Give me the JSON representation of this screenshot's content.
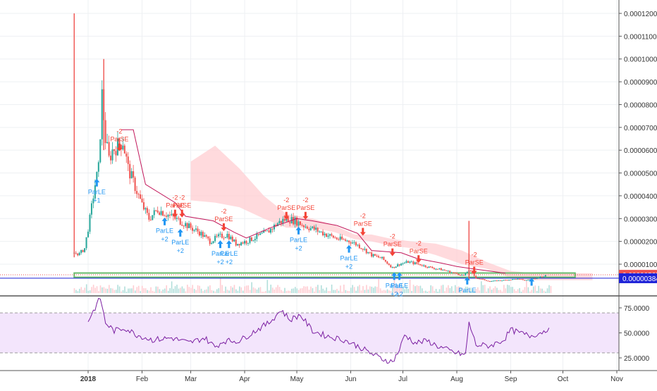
{
  "chart_data": {
    "type": "candlestick",
    "main_panel": {
      "y_axis_ticks": [
        "0.00012000",
        "0.00011000",
        "0.00010000",
        "0.00009000",
        "0.00008000",
        "0.00007000",
        "0.00006000",
        "0.00005000",
        "0.00004000",
        "0.00003000",
        "0.00002000",
        "0.00001000"
      ],
      "ylim": [
        0,
        0.000122
      ],
      "price_labels": [
        {
          "text": "0.00000535",
          "value": 5.35e-06,
          "color": "#ef5350"
        },
        {
          "text": "0.00000384",
          "value": 3.84e-06,
          "color": "#1e22d8"
        }
      ],
      "close_series": [
        {
          "d": "2017-12-24",
          "v": 1.5e-05
        },
        {
          "d": "2017-12-27",
          "v": 1.45e-05
        },
        {
          "d": "2017-12-30",
          "v": 1.7e-05
        },
        {
          "d": "2018-01-02",
          "v": 3e-05
        },
        {
          "d": "2018-01-05",
          "v": 4.5e-05
        },
        {
          "d": "2018-01-07",
          "v": 5.2e-05
        },
        {
          "d": "2018-01-09",
          "v": 8.4e-05
        },
        {
          "d": "2018-01-11",
          "v": 6.5e-05
        },
        {
          "d": "2018-01-13",
          "v": 5.6e-05
        },
        {
          "d": "2018-01-15",
          "v": 6e-05
        },
        {
          "d": "2018-01-18",
          "v": 6.2e-05
        },
        {
          "d": "2018-01-21",
          "v": 6.4e-05
        },
        {
          "d": "2018-01-24",
          "v": 5.2e-05
        },
        {
          "d": "2018-01-28",
          "v": 4.4e-05
        },
        {
          "d": "2018-02-01",
          "v": 3.6e-05
        },
        {
          "d": "2018-02-05",
          "v": 3e-05
        },
        {
          "d": "2018-02-10",
          "v": 3.4e-05
        },
        {
          "d": "2018-02-15",
          "v": 3.2e-05
        },
        {
          "d": "2018-02-20",
          "v": 3e-05
        },
        {
          "d": "2018-02-25",
          "v": 2.8e-05
        },
        {
          "d": "2018-03-01",
          "v": 2.6e-05
        },
        {
          "d": "2018-03-06",
          "v": 2.4e-05
        },
        {
          "d": "2018-03-12",
          "v": 2e-05
        },
        {
          "d": "2018-03-17",
          "v": 2.2e-05
        },
        {
          "d": "2018-03-22",
          "v": 2.3e-05
        },
        {
          "d": "2018-03-27",
          "v": 1.9e-05
        },
        {
          "d": "2018-04-02",
          "v": 2e-05
        },
        {
          "d": "2018-04-08",
          "v": 2.2e-05
        },
        {
          "d": "2018-04-14",
          "v": 2.4e-05
        },
        {
          "d": "2018-04-20",
          "v": 2.8e-05
        },
        {
          "d": "2018-04-25",
          "v": 3e-05
        },
        {
          "d": "2018-04-30",
          "v": 2.9e-05
        },
        {
          "d": "2018-05-05",
          "v": 2.7e-05
        },
        {
          "d": "2018-05-12",
          "v": 2.5e-05
        },
        {
          "d": "2018-05-18",
          "v": 2.3e-05
        },
        {
          "d": "2018-05-25",
          "v": 2.1e-05
        },
        {
          "d": "2018-06-01",
          "v": 2e-05
        },
        {
          "d": "2018-06-07",
          "v": 1.75e-05
        },
        {
          "d": "2018-06-13",
          "v": 1.4e-05
        },
        {
          "d": "2018-06-19",
          "v": 1.25e-05
        },
        {
          "d": "2018-06-25",
          "v": 8.5e-06
        },
        {
          "d": "2018-06-29",
          "v": 1e-05
        },
        {
          "d": "2018-07-04",
          "v": 1.1e-05
        },
        {
          "d": "2018-07-10",
          "v": 1e-05
        },
        {
          "d": "2018-07-17",
          "v": 8.5e-06
        },
        {
          "d": "2018-07-24",
          "v": 7.5e-06
        },
        {
          "d": "2018-07-31",
          "v": 6e-06
        },
        {
          "d": "2018-08-05",
          "v": 5e-06
        },
        {
          "d": "2018-08-08",
          "v": 7.5e-06
        },
        {
          "d": "2018-08-12",
          "v": 4e-06
        },
        {
          "d": "2018-08-20",
          "v": 2.5e-06
        },
        {
          "d": "2018-08-28",
          "v": 3e-06
        },
        {
          "d": "2018-09-04",
          "v": 3.5e-06
        },
        {
          "d": "2018-09-10",
          "v": 3e-06
        },
        {
          "d": "2018-09-16",
          "v": 4e-06
        },
        {
          "d": "2018-09-22",
          "v": 5.3e-06
        }
      ],
      "spikes": [
        {
          "d": "2017-12-24",
          "high": 0.00012,
          "low": 1.3e-05
        },
        {
          "d": "2018-01-10",
          "high": 0.0001,
          "low": 6e-05
        },
        {
          "d": "2018-08-08",
          "high": 2.9e-05,
          "low": 3e-06
        }
      ],
      "trailing_line": [
        {
          "d": "2018-01-20",
          "v": 6.9e-05
        },
        {
          "d": "2018-01-27",
          "v": 6.9e-05
        },
        {
          "d": "2018-02-03",
          "v": 4.5e-05
        },
        {
          "d": "2018-02-20",
          "v": 3.7e-05
        },
        {
          "d": "2018-02-26",
          "v": 3.1e-05
        },
        {
          "d": "2018-03-14",
          "v": 2.9e-05
        },
        {
          "d": "2018-03-26",
          "v": 2.4e-05
        },
        {
          "d": "2018-04-02",
          "v": 2.15e-05
        },
        {
          "d": "2018-04-16",
          "v": 2.6e-05
        },
        {
          "d": "2018-05-01",
          "v": 3e-05
        },
        {
          "d": "2018-05-10",
          "v": 2.9e-05
        },
        {
          "d": "2018-05-24",
          "v": 2.7e-05
        },
        {
          "d": "2018-06-05",
          "v": 2.35e-05
        },
        {
          "d": "2018-06-13",
          "v": 1.6e-05
        },
        {
          "d": "2018-06-30",
          "v": 1.5e-05
        },
        {
          "d": "2018-07-09",
          "v": 1.25e-05
        },
        {
          "d": "2018-07-23",
          "v": 1.05e-05
        },
        {
          "d": "2018-08-01",
          "v": 9e-06
        },
        {
          "d": "2018-08-10",
          "v": 8e-06
        },
        {
          "d": "2018-08-20",
          "v": 7e-06
        },
        {
          "d": "2018-08-29",
          "v": 6e-06
        }
      ],
      "cloud_upper": [
        {
          "d": "2018-03-01",
          "v": 5.5e-05
        },
        {
          "d": "2018-03-15",
          "v": 6.2e-05
        },
        {
          "d": "2018-03-29",
          "v": 5.2e-05
        },
        {
          "d": "2018-04-12",
          "v": 4e-05
        },
        {
          "d": "2018-04-25",
          "v": 3.2e-05
        },
        {
          "d": "2018-05-10",
          "v": 3e-05
        },
        {
          "d": "2018-05-23",
          "v": 2.7e-05
        },
        {
          "d": "2018-06-03",
          "v": 2.3e-05
        },
        {
          "d": "2018-06-13",
          "v": 2.3e-05
        },
        {
          "d": "2018-06-25",
          "v": 2.1e-05
        },
        {
          "d": "2018-07-06",
          "v": 2e-05
        },
        {
          "d": "2018-07-20",
          "v": 1.9e-05
        },
        {
          "d": "2018-08-04",
          "v": 1.6e-05
        },
        {
          "d": "2018-08-18",
          "v": 1.1e-05
        },
        {
          "d": "2018-09-01",
          "v": 7e-06
        },
        {
          "d": "2018-09-15",
          "v": 6e-06
        },
        {
          "d": "2018-10-01",
          "v": 6e-06
        },
        {
          "d": "2018-10-18",
          "v": 6e-06
        }
      ],
      "cloud_lower": [
        {
          "d": "2018-03-01",
          "v": 3.8e-05
        },
        {
          "d": "2018-03-15",
          "v": 3.7e-05
        },
        {
          "d": "2018-03-29",
          "v": 3.5e-05
        },
        {
          "d": "2018-04-12",
          "v": 3e-05
        },
        {
          "d": "2018-04-25",
          "v": 2.6e-05
        },
        {
          "d": "2018-05-10",
          "v": 2.6e-05
        },
        {
          "d": "2018-05-23",
          "v": 2.4e-05
        },
        {
          "d": "2018-06-03",
          "v": 2.1e-05
        },
        {
          "d": "2018-06-13",
          "v": 2e-05
        },
        {
          "d": "2018-06-25",
          "v": 1.8e-05
        },
        {
          "d": "2018-07-06",
          "v": 1.7e-05
        },
        {
          "d": "2018-07-20",
          "v": 1.4e-05
        },
        {
          "d": "2018-08-04",
          "v": 1e-05
        },
        {
          "d": "2018-08-18",
          "v": 8e-06
        },
        {
          "d": "2018-09-01",
          "v": 4e-06
        },
        {
          "d": "2018-09-15",
          "v": 3e-06
        },
        {
          "d": "2018-10-01",
          "v": 3e-06
        },
        {
          "d": "2018-10-18",
          "v": 3e-06
        }
      ],
      "signals": [
        {
          "d": "2018-01-06",
          "kind": "buy",
          "v": 4.5e-05,
          "label": "ParLE",
          "qty": "+1"
        },
        {
          "d": "2018-01-19",
          "kind": "sell",
          "v": 6.2e-05,
          "label": "ParSE",
          "qty": "-2"
        },
        {
          "d": "2018-02-14",
          "kind": "buy",
          "v": 2.8e-05,
          "label": "ParLE",
          "qty": "+2"
        },
        {
          "d": "2018-02-20",
          "kind": "sell",
          "v": 3.3e-05,
          "label": "ParSE",
          "qty": "-2"
        },
        {
          "d": "2018-02-24",
          "kind": "sell",
          "v": 3.3e-05,
          "label": "ParSE",
          "qty": "-2"
        },
        {
          "d": "2018-02-23",
          "kind": "buy",
          "v": 2.3e-05,
          "label": "ParLE",
          "qty": "+2"
        },
        {
          "d": "2018-03-18",
          "kind": "buy",
          "v": 1.8e-05,
          "label": "ParLE",
          "qty": "+2"
        },
        {
          "d": "2018-03-23",
          "kind": "buy",
          "v": 1.8e-05,
          "label": "ParLE",
          "qty": "+2"
        },
        {
          "d": "2018-03-20",
          "kind": "sell",
          "v": 2.7e-05,
          "label": "ParSE",
          "qty": "-2"
        },
        {
          "d": "2018-04-25",
          "kind": "sell",
          "v": 3.2e-05,
          "label": "ParSE",
          "qty": "-2"
        },
        {
          "d": "2018-05-02",
          "kind": "buy",
          "v": 2.4e-05,
          "label": "ParLE",
          "qty": "+2"
        },
        {
          "d": "2018-05-06",
          "kind": "sell",
          "v": 3.2e-05,
          "label": "ParSE",
          "qty": "-2"
        },
        {
          "d": "2018-05-31",
          "kind": "buy",
          "v": 1.6e-05,
          "label": "ParLE",
          "qty": "+2"
        },
        {
          "d": "2018-06-08",
          "kind": "sell",
          "v": 2.5e-05,
          "label": "ParSE",
          "qty": "-2"
        },
        {
          "d": "2018-06-25",
          "kind": "sell",
          "v": 1.6e-05,
          "label": "ParSE",
          "qty": "-2"
        },
        {
          "d": "2018-06-26",
          "kind": "buy",
          "v": 4e-06,
          "label": "ParLE",
          "qty": "+2"
        },
        {
          "d": "2018-06-29",
          "kind": "buy",
          "v": 4e-06,
          "label": "ParLE",
          "qty": "+2"
        },
        {
          "d": "2018-07-10",
          "kind": "sell",
          "v": 1.3e-05,
          "label": "ParSE",
          "qty": "-2"
        },
        {
          "d": "2018-08-07",
          "kind": "buy",
          "v": 2e-06,
          "label": "ParLE",
          "qty": ""
        },
        {
          "d": "2018-08-11",
          "kind": "sell",
          "v": 8e-06,
          "label": "ParSE",
          "qty": "-2"
        },
        {
          "d": "2018-09-13",
          "kind": "buy",
          "v": 1.5e-06,
          "label": "",
          "qty": ""
        }
      ],
      "horizontal_lines": [
        {
          "v": 5.35e-06,
          "color": "#ef5350",
          "style": "dotted"
        },
        {
          "v": 3.84e-06,
          "color": "#1e22d8",
          "style": "solid"
        },
        {
          "v": 5.2e-06,
          "color": "#66bb6a",
          "style": "band"
        }
      ]
    },
    "rsi_panel": {
      "y_axis_ticks": [
        "75.0000",
        "50.0000",
        "25.0000"
      ],
      "ylim": [
        18,
        90
      ],
      "band": [
        30,
        70
      ],
      "values": [
        {
          "d": "2018-01-01",
          "v": 62
        },
        {
          "d": "2018-01-05",
          "v": 75
        },
        {
          "d": "2018-01-08",
          "v": 85
        },
        {
          "d": "2018-01-11",
          "v": 60
        },
        {
          "d": "2018-01-16",
          "v": 52
        },
        {
          "d": "2018-01-22",
          "v": 55
        },
        {
          "d": "2018-01-29",
          "v": 48
        },
        {
          "d": "2018-02-07",
          "v": 43
        },
        {
          "d": "2018-02-18",
          "v": 45
        },
        {
          "d": "2018-02-28",
          "v": 40
        },
        {
          "d": "2018-03-09",
          "v": 45
        },
        {
          "d": "2018-03-15",
          "v": 36
        },
        {
          "d": "2018-03-20",
          "v": 42
        },
        {
          "d": "2018-03-29",
          "v": 42
        },
        {
          "d": "2018-04-07",
          "v": 52
        },
        {
          "d": "2018-04-15",
          "v": 60
        },
        {
          "d": "2018-04-22",
          "v": 73
        },
        {
          "d": "2018-04-27",
          "v": 63
        },
        {
          "d": "2018-05-03",
          "v": 68
        },
        {
          "d": "2018-05-10",
          "v": 52
        },
        {
          "d": "2018-05-18",
          "v": 47
        },
        {
          "d": "2018-05-28",
          "v": 43
        },
        {
          "d": "2018-06-06",
          "v": 36
        },
        {
          "d": "2018-06-12",
          "v": 30
        },
        {
          "d": "2018-06-19",
          "v": 24
        },
        {
          "d": "2018-06-25",
          "v": 21
        },
        {
          "d": "2018-06-29",
          "v": 33
        },
        {
          "d": "2018-07-02",
          "v": 48
        },
        {
          "d": "2018-07-08",
          "v": 40
        },
        {
          "d": "2018-07-15",
          "v": 42
        },
        {
          "d": "2018-07-22",
          "v": 36
        },
        {
          "d": "2018-07-31",
          "v": 30
        },
        {
          "d": "2018-08-06",
          "v": 28
        },
        {
          "d": "2018-08-08",
          "v": 60
        },
        {
          "d": "2018-08-12",
          "v": 38
        },
        {
          "d": "2018-08-20",
          "v": 37
        },
        {
          "d": "2018-08-28",
          "v": 43
        },
        {
          "d": "2018-09-01",
          "v": 53
        },
        {
          "d": "2018-09-06",
          "v": 50
        },
        {
          "d": "2018-09-12",
          "v": 47
        },
        {
          "d": "2018-09-18",
          "v": 50
        },
        {
          "d": "2018-09-23",
          "v": 55
        }
      ]
    },
    "x_axis_ticks": [
      {
        "label": "2018",
        "d": "2018-01-01",
        "bold": true
      },
      {
        "label": "Feb",
        "d": "2018-02-01"
      },
      {
        "label": "Mar",
        "d": "2018-03-01"
      },
      {
        "label": "Apr",
        "d": "2018-04-01"
      },
      {
        "label": "May",
        "d": "2018-05-01"
      },
      {
        "label": "Jun",
        "d": "2018-06-01"
      },
      {
        "label": "Jul",
        "d": "2018-07-01"
      },
      {
        "label": "Aug",
        "d": "2018-08-01"
      },
      {
        "label": "Sep",
        "d": "2018-09-01"
      },
      {
        "label": "Oct",
        "d": "2018-10-01"
      },
      {
        "label": "Nov",
        "d": "2018-11-01"
      }
    ],
    "colors": {
      "up": "#26a69a",
      "down": "#ef5350",
      "rsi_line": "#7b1fa2",
      "rsi_band": "#f3e5fc",
      "cloud": "#ffcdd2",
      "trailing": "#c2185b",
      "signal_buy": "#2196f3",
      "signal_sell": "#f44336"
    },
    "grid": true
  }
}
